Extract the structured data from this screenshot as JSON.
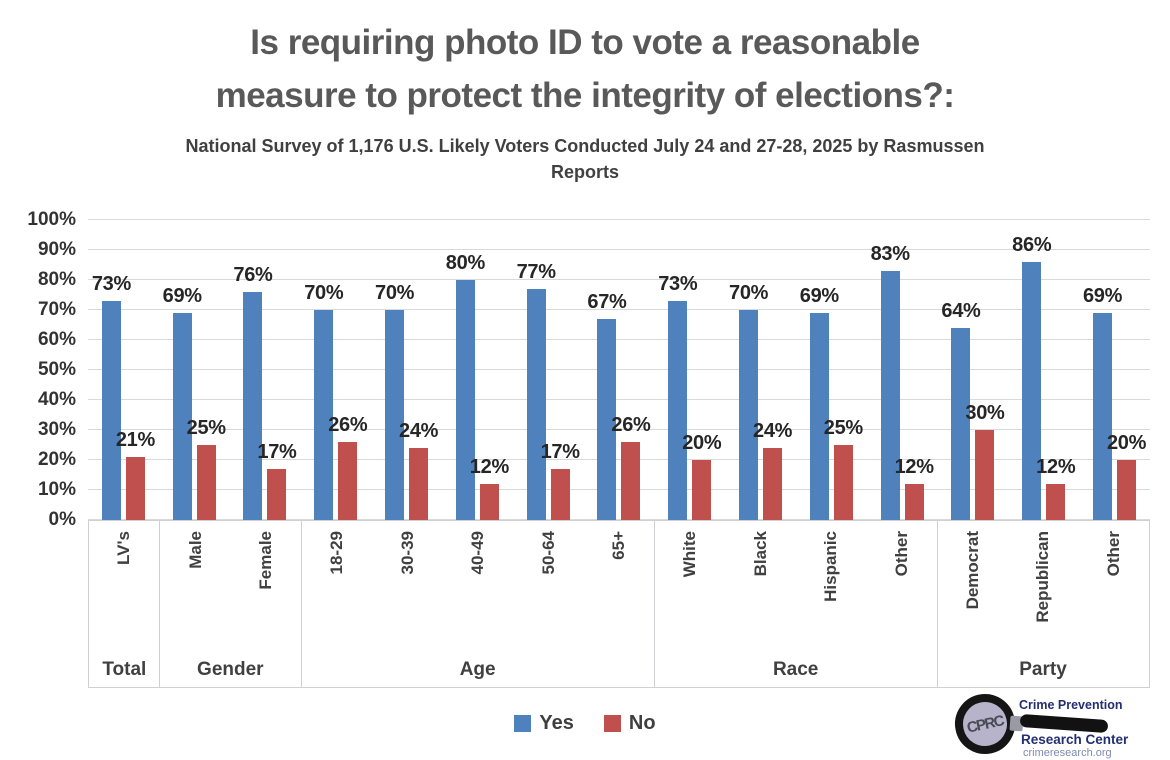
{
  "header": {
    "title_lines": [
      "Is requiring photo ID to vote a reasonable",
      "measure to protect the integrity of elections?:"
    ],
    "subtitle_lines": [
      "National Survey of 1,176 U.S. Likely Voters Conducted July 24 and 27-28, 2025 by Rasmussen",
      "Reports"
    ]
  },
  "chart_data": {
    "type": "bar",
    "title": "Is requiring photo ID to vote a reasonable measure to protect the integrity of elections?:",
    "subtitle": "National Survey of 1,176 U.S. Likely Voters Conducted July 24 and 27-28, 2025 by Rasmussen Reports",
    "categories": [
      "LV's",
      "Male",
      "Female",
      "18-29",
      "30-39",
      "40-49",
      "50-64",
      "65+",
      "White",
      "Black",
      "Hispanic",
      "Other",
      "Democrat",
      "Republican",
      "Other"
    ],
    "series": [
      {
        "name": "Yes",
        "color": "#4f81bd",
        "values": [
          73,
          69,
          76,
          70,
          70,
          80,
          77,
          67,
          73,
          70,
          69,
          83,
          64,
          86,
          69
        ]
      },
      {
        "name": "No",
        "color": "#c0504d",
        "values": [
          21,
          25,
          17,
          26,
          24,
          12,
          17,
          26,
          20,
          24,
          25,
          12,
          30,
          12,
          20
        ]
      }
    ],
    "category_groups": [
      {
        "label": "Total",
        "span": 1
      },
      {
        "label": "Gender",
        "span": 2
      },
      {
        "label": "Age",
        "span": 5
      },
      {
        "label": "Race",
        "span": 4
      },
      {
        "label": "Party",
        "span": 3
      }
    ],
    "y_tick_labels": [
      "0%",
      "10%",
      "20%",
      "30%",
      "40%",
      "50%",
      "60%",
      "70%",
      "80%",
      "90%",
      "100%"
    ],
    "ylim": [
      0,
      100
    ],
    "grid": true,
    "legend_position": "bottom",
    "data_label_suffix": "%"
  },
  "legend": {
    "items": [
      {
        "label": "Yes",
        "color": "#4f81bd"
      },
      {
        "label": "No",
        "color": "#c0504d"
      }
    ]
  },
  "logo": {
    "acronym": "CPRC",
    "line1": "Crime Prevention",
    "line2": "Research Center",
    "url": "crimeresearch.org"
  },
  "colors": {
    "yes": "#4f81bd",
    "no": "#c0504d",
    "gridline": "#d9d9d9",
    "title": "#595959",
    "data_label": "#262626"
  }
}
